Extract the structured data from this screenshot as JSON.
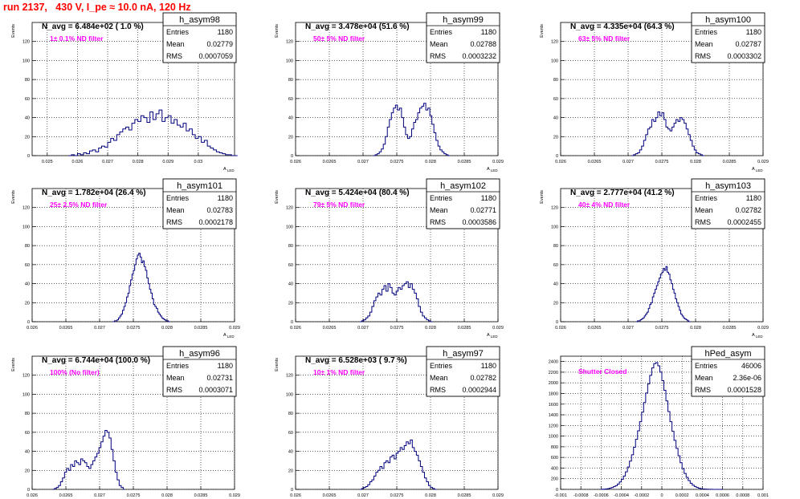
{
  "run_title": "run 2137,   430 V, I_pe ≈ 10.0 nA, 120 Hz",
  "colors": {
    "title": "#ff0000",
    "annotation": "#ff00ff",
    "histogram": "#00007f",
    "grid": "#000000",
    "frame": "#000000",
    "background": "#ffffff"
  },
  "chart_data": [
    {
      "type": "histogram",
      "name": "h_asym98",
      "stats": {
        "entries_label": "Entries",
        "entries": "1180",
        "mean_label": "Mean",
        "mean": "0.02779",
        "rms_label": "RMS",
        "rms": "0.0007059"
      },
      "navg": "N_avg = 6.484e+02 ( 1.0 %)",
      "annotation": "1± 0.1% ND filter",
      "ylabel": "Events",
      "xlabel": "A_LED",
      "xlim": [
        0.0245,
        0.0312
      ],
      "ylim": [
        0,
        140
      ],
      "xticks": [
        0.025,
        0.026,
        0.027,
        0.028,
        0.029,
        0.03
      ],
      "xtick_labels": [
        "0.025",
        "0.026",
        "0.027",
        "0.028",
        "0.029",
        "0.03"
      ],
      "yticks": [
        0,
        20,
        40,
        60,
        80,
        100,
        120
      ],
      "ytick_labels": [
        "0",
        "20",
        "40",
        "60",
        "80",
        "100",
        "120"
      ],
      "bin_start": 0.0257,
      "bin_width": 0.0001,
      "counts": [
        0,
        1,
        0,
        2,
        1,
        3,
        2,
        5,
        6,
        4,
        8,
        10,
        9,
        14,
        18,
        16,
        22,
        25,
        28,
        30,
        27,
        34,
        38,
        36,
        42,
        40,
        35,
        46,
        38,
        44,
        48,
        36,
        40,
        42,
        34,
        38,
        32,
        30,
        34,
        26,
        28,
        22,
        18,
        20,
        14,
        16,
        10,
        8,
        6,
        4,
        3,
        2,
        1,
        1,
        0,
        0
      ]
    },
    {
      "type": "histogram",
      "name": "h_asym99",
      "stats": {
        "entries_label": "Entries",
        "entries": "1180",
        "mean_label": "Mean",
        "mean": "0.02788",
        "rms_label": "RMS",
        "rms": "0.0003232"
      },
      "navg": "N_avg = 3.478e+04 (51.6 %)",
      "annotation": "50± 5% ND filter",
      "ylabel": "Events",
      "xlabel": "A_LED",
      "xlim": [
        0.026,
        0.029
      ],
      "ylim": [
        0,
        140
      ],
      "xticks": [
        0.026,
        0.0265,
        0.027,
        0.0275,
        0.028,
        0.0285,
        0.029
      ],
      "xtick_labels": [
        "0.026",
        "0.0265",
        "0.027",
        "0.0275",
        "0.028",
        "0.0285",
        "0.029"
      ],
      "yticks": [
        0,
        20,
        40,
        60,
        80,
        100,
        120
      ],
      "ytick_labels": [
        "0",
        "20",
        "40",
        "60",
        "80",
        "100",
        "120"
      ],
      "bin_start": 0.02715,
      "bin_width": 3e-05,
      "counts": [
        0,
        1,
        2,
        4,
        7,
        12,
        20,
        30,
        38,
        45,
        50,
        53,
        48,
        50,
        40,
        30,
        22,
        18,
        20,
        28,
        35,
        38,
        45,
        50,
        52,
        55,
        48,
        50,
        42,
        33,
        24,
        16,
        10,
        6,
        4,
        2,
        1,
        0
      ]
    },
    {
      "type": "histogram",
      "name": "h_asym100",
      "stats": {
        "entries_label": "Entries",
        "entries": "1180",
        "mean_label": "Mean",
        "mean": "0.02787",
        "rms_label": "RMS",
        "rms": "0.0003302"
      },
      "navg": "N_avg = 4.335e+04 (64.3 %)",
      "annotation": "63± 5% ND filter",
      "ylabel": "Events",
      "xlabel": "A_LED",
      "xlim": [
        0.026,
        0.029
      ],
      "ylim": [
        0,
        140
      ],
      "xticks": [
        0.026,
        0.0265,
        0.027,
        0.0275,
        0.028,
        0.0285,
        0.029
      ],
      "xtick_labels": [
        "0.026",
        "0.0265",
        "0.027",
        "0.0275",
        "0.028",
        "0.0285",
        "0.029"
      ],
      "yticks": [
        0,
        20,
        40,
        60,
        80,
        100,
        120
      ],
      "ytick_labels": [
        "0",
        "20",
        "40",
        "60",
        "80",
        "100",
        "120"
      ],
      "bin_start": 0.02705,
      "bin_width": 3e-05,
      "counts": [
        0,
        1,
        2,
        3,
        6,
        10,
        16,
        22,
        28,
        30,
        38,
        36,
        40,
        46,
        42,
        45,
        38,
        30,
        28,
        26,
        30,
        34,
        38,
        36,
        40,
        38,
        34,
        28,
        22,
        16,
        10,
        6,
        3,
        2,
        1,
        0
      ]
    },
    {
      "type": "histogram",
      "name": "h_asym101",
      "stats": {
        "entries_label": "Entries",
        "entries": "1180",
        "mean_label": "Mean",
        "mean": "0.02783",
        "rms_label": "RMS",
        "rms": "0.0002178"
      },
      "navg": "N_avg = 1.782e+04 (26.4 %)",
      "annotation": "25± 2.5% ND filter",
      "ylabel": "Events",
      "xlabel": "A_LED",
      "xlim": [
        0.026,
        0.029
      ],
      "ylim": [
        0,
        140
      ],
      "xticks": [
        0.026,
        0.0265,
        0.027,
        0.0275,
        0.028,
        0.0285,
        0.029
      ],
      "xtick_labels": [
        "0.026",
        "0.0265",
        "0.027",
        "0.0275",
        "0.028",
        "0.0285",
        "0.029"
      ],
      "yticks": [
        0,
        20,
        40,
        60,
        80,
        100,
        120
      ],
      "ytick_labels": [
        "0",
        "20",
        "40",
        "60",
        "80",
        "100",
        "120"
      ],
      "bin_start": 0.0272,
      "bin_width": 2e-05,
      "counts": [
        0,
        1,
        1,
        2,
        4,
        6,
        8,
        12,
        16,
        20,
        26,
        30,
        38,
        44,
        50,
        54,
        60,
        66,
        70,
        72,
        68,
        62,
        64,
        58,
        54,
        46,
        40,
        34,
        30,
        24,
        18,
        16,
        14,
        10,
        8,
        6,
        4,
        3,
        2,
        1,
        1,
        0
      ]
    },
    {
      "type": "histogram",
      "name": "h_asym102",
      "stats": {
        "entries_label": "Entries",
        "entries": "1180",
        "mean_label": "Mean",
        "mean": "0.02771",
        "rms_label": "RMS",
        "rms": "0.0003586"
      },
      "navg": "N_avg = 5.424e+04 (80.4 %)",
      "annotation": "79± 5% ND filter",
      "ylabel": "Events",
      "xlabel": "A_LED",
      "xlim": [
        0.026,
        0.029
      ],
      "ylim": [
        0,
        140
      ],
      "xticks": [
        0.026,
        0.0265,
        0.027,
        0.0275,
        0.028,
        0.0285,
        0.029
      ],
      "xtick_labels": [
        "0.026",
        "0.0265",
        "0.027",
        "0.0275",
        "0.028",
        "0.0285",
        "0.029"
      ],
      "yticks": [
        0,
        20,
        40,
        60,
        80,
        100,
        120
      ],
      "ytick_labels": [
        "0",
        "20",
        "40",
        "60",
        "80",
        "100",
        "120"
      ],
      "bin_start": 0.02695,
      "bin_width": 3e-05,
      "counts": [
        0,
        1,
        2,
        4,
        6,
        10,
        16,
        22,
        26,
        30,
        28,
        34,
        38,
        32,
        40,
        36,
        30,
        28,
        32,
        36,
        34,
        38,
        40,
        42,
        36,
        40,
        34,
        30,
        24,
        16,
        10,
        6,
        4,
        2,
        1,
        0
      ]
    },
    {
      "type": "histogram",
      "name": "h_asym103",
      "stats": {
        "entries_label": "Entries",
        "entries": "1180",
        "mean_label": "Mean",
        "mean": "0.02782",
        "rms_label": "RMS",
        "rms": "0.0002455"
      },
      "navg": "N_avg = 2.777e+04 (41.2 %)",
      "annotation": "40± 4% ND filter",
      "ylabel": "Events",
      "xlabel": "A_LED",
      "xlim": [
        0.026,
        0.029
      ],
      "ylim": [
        0,
        140
      ],
      "xticks": [
        0.026,
        0.0265,
        0.027,
        0.0275,
        0.028,
        0.0285,
        0.029
      ],
      "xtick_labels": [
        "0.026",
        "0.0265",
        "0.027",
        "0.0275",
        "0.028",
        "0.0285",
        "0.029"
      ],
      "yticks": [
        0,
        20,
        40,
        60,
        80,
        100,
        120
      ],
      "ytick_labels": [
        "0",
        "20",
        "40",
        "60",
        "80",
        "100",
        "120"
      ],
      "bin_start": 0.02712,
      "bin_width": 2e-05,
      "counts": [
        0,
        1,
        1,
        2,
        3,
        4,
        6,
        8,
        10,
        14,
        18,
        20,
        26,
        30,
        34,
        38,
        42,
        46,
        50,
        52,
        56,
        54,
        58,
        52,
        50,
        44,
        40,
        34,
        30,
        24,
        20,
        16,
        12,
        8,
        6,
        4,
        3,
        2,
        1,
        0
      ]
    },
    {
      "type": "histogram",
      "name": "h_asym96",
      "stats": {
        "entries_label": "Entries",
        "entries": "1180",
        "mean_label": "Mean",
        "mean": "0.02731",
        "rms_label": "RMS",
        "rms": "0.0003071"
      },
      "navg": "N_avg = 6.744e+04 (100.0 %)",
      "annotation": "100% (No filter)",
      "ylabel": "Events",
      "xlabel": "A_LED",
      "xlim": [
        0.026,
        0.029
      ],
      "ylim": [
        0,
        140
      ],
      "xticks": [
        0.026,
        0.0265,
        0.027,
        0.0275,
        0.028,
        0.0285,
        0.029
      ],
      "xtick_labels": [
        "0.026",
        "0.0265",
        "0.027",
        "0.0275",
        "0.028",
        "0.0285",
        "0.029"
      ],
      "yticks": [
        0,
        20,
        40,
        60,
        80,
        100,
        120
      ],
      "ytick_labels": [
        "0",
        "20",
        "40",
        "60",
        "80",
        "100",
        "120"
      ],
      "bin_start": 0.0263,
      "bin_width": 3e-05,
      "counts": [
        0,
        1,
        2,
        4,
        8,
        12,
        18,
        22,
        20,
        26,
        24,
        30,
        28,
        26,
        32,
        30,
        28,
        24,
        22,
        26,
        30,
        34,
        38,
        44,
        50,
        56,
        62,
        60,
        54,
        42,
        30,
        18,
        10,
        4,
        2,
        0
      ]
    },
    {
      "type": "histogram",
      "name": "h_asym97",
      "stats": {
        "entries_label": "Entries",
        "entries": "1180",
        "mean_label": "Mean",
        "mean": "0.02782",
        "rms_label": "RMS",
        "rms": "0.0002944"
      },
      "navg": "N_avg = 6.528e+03 ( 9.7 %)",
      "annotation": "10± 1% ND filter",
      "ylabel": "Events",
      "xlabel": "A_LED",
      "xlim": [
        0.026,
        0.029
      ],
      "ylim": [
        0,
        140
      ],
      "xticks": [
        0.026,
        0.0265,
        0.027,
        0.0275,
        0.028,
        0.0285,
        0.029
      ],
      "xtick_labels": [
        "0.026",
        "0.0265",
        "0.027",
        "0.0275",
        "0.028",
        "0.0285",
        "0.029"
      ],
      "yticks": [
        0,
        20,
        40,
        60,
        80,
        100,
        120
      ],
      "ytick_labels": [
        "0",
        "20",
        "40",
        "60",
        "80",
        "100",
        "120"
      ],
      "bin_start": 0.02695,
      "bin_width": 3e-05,
      "counts": [
        0,
        1,
        2,
        3,
        5,
        8,
        10,
        14,
        18,
        20,
        24,
        22,
        28,
        30,
        28,
        34,
        36,
        32,
        38,
        40,
        44,
        42,
        46,
        50,
        48,
        52,
        44,
        40,
        36,
        30,
        24,
        18,
        12,
        8,
        4,
        2,
        1,
        0
      ]
    },
    {
      "type": "histogram",
      "name": "hPed_asym",
      "stats": {
        "entries_label": "Entries",
        "entries": "46006",
        "mean_label": "Mean",
        "mean": "2.36e-06",
        "rms_label": "RMS",
        "rms": "0.0001528"
      },
      "navg": "",
      "annotation": "Shutter Closed",
      "ylabel": "",
      "xlabel": "",
      "xlim": [
        -0.001,
        0.001
      ],
      "ylim": [
        0,
        2500
      ],
      "xticks": [
        -0.001,
        -0.0008,
        -0.0006,
        -0.0004,
        -0.0002,
        0,
        0.0002,
        0.0004,
        0.0006,
        0.0008,
        0.001
      ],
      "xtick_labels": [
        "-0.001",
        "-0.0008",
        "-0.0006",
        "-0.0004",
        "-0.0002",
        "0",
        "0.0002",
        "0.0004",
        "0.0006",
        "0.0008",
        "0.001"
      ],
      "yticks": [
        0,
        200,
        400,
        600,
        800,
        1000,
        1200,
        1400,
        1600,
        1800,
        2000,
        2200,
        2400
      ],
      "ytick_labels": [
        "0",
        "200",
        "400",
        "600",
        "800",
        "1000",
        "1200",
        "1400",
        "1600",
        "1800",
        "2000",
        "2200",
        "2400"
      ],
      "bin_start": -0.0006,
      "bin_width": 2e-05,
      "counts": [
        2,
        4,
        8,
        14,
        22,
        34,
        50,
        70,
        100,
        140,
        190,
        250,
        330,
        420,
        530,
        650,
        790,
        940,
        1100,
        1270,
        1450,
        1630,
        1810,
        1980,
        2140,
        2280,
        2360,
        2380,
        2320,
        2200,
        2040,
        1860,
        1660,
        1460,
        1270,
        1090,
        920,
        770,
        630,
        500,
        390,
        300,
        225,
        165,
        115,
        80,
        54,
        35,
        22,
        14,
        8,
        5,
        3,
        1,
        1,
        0,
        0,
        0,
        0,
        0
      ]
    }
  ]
}
